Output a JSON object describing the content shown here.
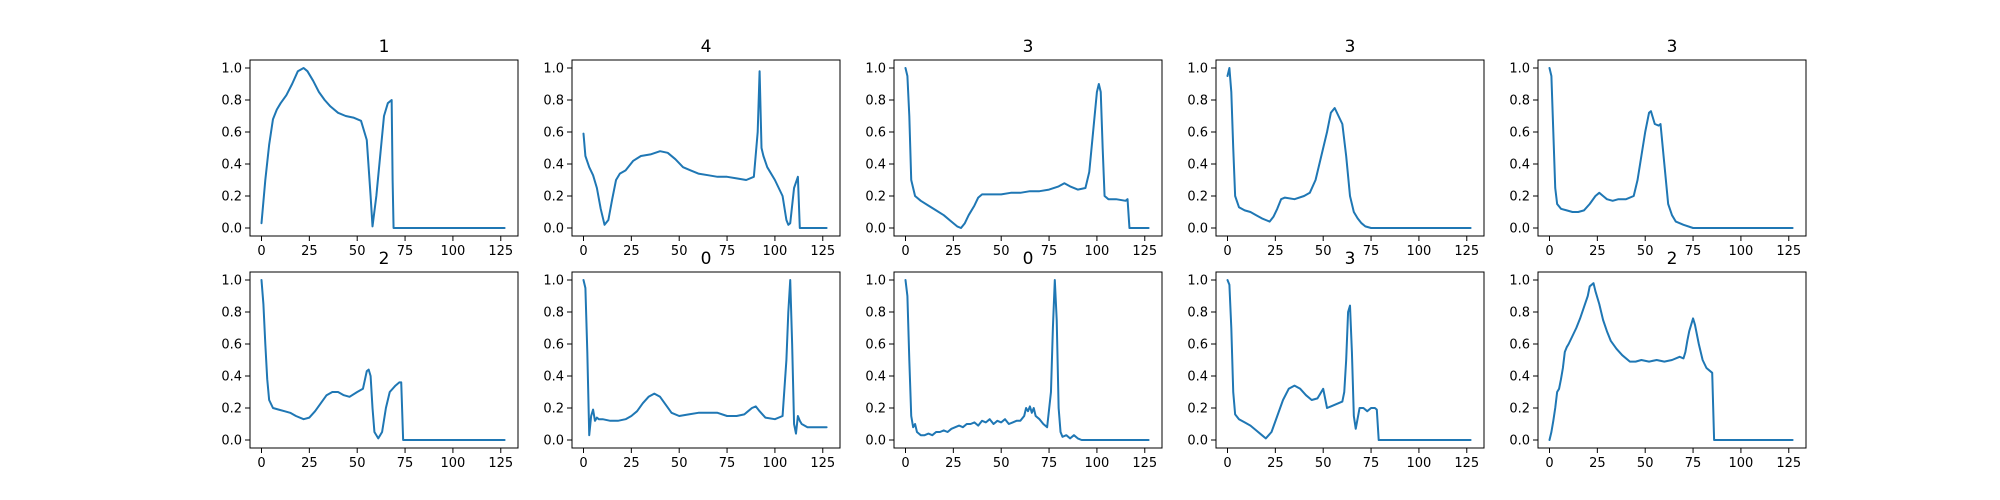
{
  "chart_data": [
    {
      "type": "line",
      "title": "1",
      "xlim": [
        -6,
        134
      ],
      "ylim": [
        -0.05,
        1.05
      ],
      "xticks": [
        "0",
        "25",
        "50",
        "75",
        "100",
        "125"
      ],
      "yticks": [
        "0.0",
        "0.2",
        "0.4",
        "0.6",
        "0.8",
        "1.0"
      ],
      "series": [
        {
          "color": "#1f77b4",
          "x": [
            0,
            2,
            4,
            6,
            8,
            10,
            13,
            16,
            19,
            22,
            24,
            27,
            30,
            33,
            36,
            40,
            44,
            48,
            52,
            55,
            57,
            58,
            60,
            62,
            64,
            66,
            68,
            68.5,
            69,
            80,
            100,
            127
          ],
          "y": [
            0.03,
            0.3,
            0.52,
            0.68,
            0.74,
            0.78,
            0.83,
            0.9,
            0.98,
            1.0,
            0.98,
            0.92,
            0.85,
            0.8,
            0.76,
            0.72,
            0.7,
            0.69,
            0.67,
            0.55,
            0.2,
            0.01,
            0.2,
            0.45,
            0.7,
            0.78,
            0.8,
            0.3,
            0.0,
            0.0,
            0.0,
            0.0
          ]
        }
      ]
    },
    {
      "type": "line",
      "title": "4",
      "xlim": [
        -6,
        134
      ],
      "ylim": [
        -0.05,
        1.05
      ],
      "xticks": [
        "0",
        "25",
        "50",
        "75",
        "100",
        "125"
      ],
      "yticks": [
        "0.0",
        "0.2",
        "0.4",
        "0.6",
        "0.8",
        "1.0"
      ],
      "series": [
        {
          "color": "#1f77b4",
          "x": [
            0,
            1,
            3,
            5,
            7,
            9,
            11,
            13,
            15,
            17,
            19,
            22,
            26,
            30,
            35,
            40,
            44,
            48,
            52,
            56,
            60,
            65,
            70,
            75,
            80,
            85,
            89,
            91,
            92,
            93,
            94,
            96,
            100,
            104,
            106,
            107,
            108,
            110,
            112,
            113,
            115,
            120,
            127
          ],
          "y": [
            0.59,
            0.45,
            0.38,
            0.33,
            0.25,
            0.12,
            0.02,
            0.05,
            0.18,
            0.3,
            0.34,
            0.36,
            0.42,
            0.45,
            0.46,
            0.48,
            0.47,
            0.43,
            0.38,
            0.36,
            0.34,
            0.33,
            0.32,
            0.32,
            0.31,
            0.3,
            0.32,
            0.6,
            0.98,
            0.5,
            0.45,
            0.38,
            0.3,
            0.2,
            0.05,
            0.02,
            0.03,
            0.25,
            0.32,
            0.0,
            0.0,
            0.0,
            0.0
          ]
        }
      ]
    },
    {
      "type": "line",
      "title": "3",
      "xlim": [
        -6,
        134
      ],
      "ylim": [
        -0.05,
        1.05
      ],
      "xticks": [
        "0",
        "25",
        "50",
        "75",
        "100",
        "125"
      ],
      "yticks": [
        "0.0",
        "0.2",
        "0.4",
        "0.6",
        "0.8",
        "1.0"
      ],
      "series": [
        {
          "color": "#1f77b4",
          "x": [
            0,
            1,
            2,
            3,
            5,
            8,
            12,
            16,
            20,
            24,
            27,
            29,
            31,
            33,
            36,
            38,
            40,
            44,
            50,
            55,
            60,
            65,
            70,
            75,
            80,
            83,
            86,
            90,
            94,
            96,
            98,
            100,
            101,
            102,
            103,
            104,
            106,
            110,
            115,
            116,
            117,
            120,
            127
          ],
          "y": [
            1.0,
            0.95,
            0.7,
            0.3,
            0.2,
            0.17,
            0.14,
            0.11,
            0.08,
            0.04,
            0.01,
            0.0,
            0.03,
            0.08,
            0.14,
            0.19,
            0.21,
            0.21,
            0.21,
            0.22,
            0.22,
            0.23,
            0.23,
            0.24,
            0.26,
            0.28,
            0.26,
            0.24,
            0.25,
            0.35,
            0.6,
            0.85,
            0.9,
            0.85,
            0.5,
            0.2,
            0.18,
            0.18,
            0.17,
            0.18,
            0.0,
            0.0,
            0.0
          ]
        }
      ]
    },
    {
      "type": "line",
      "title": "3",
      "xlim": [
        -6,
        134
      ],
      "ylim": [
        -0.05,
        1.05
      ],
      "xticks": [
        "0",
        "25",
        "50",
        "75",
        "100",
        "125"
      ],
      "yticks": [
        "0.0",
        "0.2",
        "0.4",
        "0.6",
        "0.8",
        "1.0"
      ],
      "series": [
        {
          "color": "#1f77b4",
          "x": [
            0,
            1,
            2,
            3,
            4,
            6,
            9,
            12,
            15,
            18,
            20,
            22,
            24,
            26,
            28,
            30,
            35,
            40,
            43,
            46,
            49,
            52,
            54,
            56,
            58,
            60,
            62,
            64,
            66,
            68,
            70,
            72,
            75,
            80,
            100,
            127
          ],
          "y": [
            0.95,
            1.0,
            0.85,
            0.5,
            0.2,
            0.13,
            0.11,
            0.1,
            0.08,
            0.06,
            0.05,
            0.04,
            0.07,
            0.12,
            0.18,
            0.19,
            0.18,
            0.2,
            0.22,
            0.3,
            0.45,
            0.6,
            0.72,
            0.75,
            0.7,
            0.65,
            0.45,
            0.2,
            0.1,
            0.06,
            0.03,
            0.01,
            0.0,
            0.0,
            0.0,
            0.0
          ]
        }
      ]
    },
    {
      "type": "line",
      "title": "3",
      "xlim": [
        -6,
        134
      ],
      "ylim": [
        -0.05,
        1.05
      ],
      "xticks": [
        "0",
        "25",
        "50",
        "75",
        "100",
        "125"
      ],
      "yticks": [
        "0.0",
        "0.2",
        "0.4",
        "0.6",
        "0.8",
        "1.0"
      ],
      "series": [
        {
          "color": "#1f77b4",
          "x": [
            0,
            1,
            2,
            3,
            4,
            6,
            9,
            12,
            15,
            18,
            21,
            24,
            26,
            28,
            30,
            33,
            36,
            40,
            44,
            46,
            48,
            50,
            52,
            53,
            55,
            57,
            58,
            60,
            62,
            64,
            66,
            70,
            75,
            80,
            100,
            127
          ],
          "y": [
            1.0,
            0.95,
            0.6,
            0.25,
            0.15,
            0.12,
            0.11,
            0.1,
            0.1,
            0.11,
            0.15,
            0.2,
            0.22,
            0.2,
            0.18,
            0.17,
            0.18,
            0.18,
            0.2,
            0.3,
            0.45,
            0.6,
            0.72,
            0.73,
            0.65,
            0.64,
            0.65,
            0.4,
            0.15,
            0.08,
            0.04,
            0.02,
            0.0,
            0.0,
            0.0,
            0.0
          ]
        }
      ]
    },
    {
      "type": "line",
      "title": "2",
      "xlim": [
        -6,
        134
      ],
      "ylim": [
        -0.05,
        1.05
      ],
      "xticks": [
        "0",
        "25",
        "50",
        "75",
        "100",
        "125"
      ],
      "yticks": [
        "0.0",
        "0.2",
        "0.4",
        "0.6",
        "0.8",
        "1.0"
      ],
      "series": [
        {
          "color": "#1f77b4",
          "x": [
            0,
            1,
            2,
            3,
            4,
            6,
            9,
            12,
            15,
            18,
            22,
            25,
            28,
            31,
            34,
            37,
            40,
            43,
            46,
            50,
            53,
            55,
            56,
            57,
            58,
            59,
            61,
            63,
            65,
            67,
            70,
            72,
            73,
            74,
            75,
            80,
            100,
            127
          ],
          "y": [
            1.0,
            0.85,
            0.6,
            0.38,
            0.25,
            0.2,
            0.19,
            0.18,
            0.17,
            0.15,
            0.13,
            0.14,
            0.18,
            0.23,
            0.28,
            0.3,
            0.3,
            0.28,
            0.27,
            0.3,
            0.32,
            0.43,
            0.44,
            0.4,
            0.2,
            0.05,
            0.01,
            0.05,
            0.2,
            0.3,
            0.34,
            0.36,
            0.36,
            0.0,
            0.0,
            0.0,
            0.0,
            0.0
          ]
        }
      ]
    },
    {
      "type": "line",
      "title": "0",
      "xlim": [
        -6,
        134
      ],
      "ylim": [
        -0.05,
        1.05
      ],
      "xticks": [
        "0",
        "25",
        "50",
        "75",
        "100",
        "125"
      ],
      "yticks": [
        "0.0",
        "0.2",
        "0.4",
        "0.6",
        "0.8",
        "1.0"
      ],
      "series": [
        {
          "color": "#1f77b4",
          "x": [
            0,
            1,
            2,
            3,
            4,
            5,
            6,
            7,
            8,
            10,
            14,
            18,
            22,
            25,
            28,
            31,
            34,
            37,
            40,
            43,
            46,
            50,
            55,
            60,
            65,
            70,
            75,
            80,
            84,
            86,
            88,
            90,
            92,
            95,
            100,
            104,
            106,
            107,
            108,
            109,
            110,
            111,
            112,
            113,
            114,
            117,
            120,
            127
          ],
          "y": [
            1.0,
            0.95,
            0.55,
            0.03,
            0.15,
            0.19,
            0.12,
            0.14,
            0.13,
            0.13,
            0.12,
            0.12,
            0.13,
            0.15,
            0.18,
            0.23,
            0.27,
            0.29,
            0.27,
            0.22,
            0.17,
            0.15,
            0.16,
            0.17,
            0.17,
            0.17,
            0.15,
            0.15,
            0.16,
            0.18,
            0.2,
            0.21,
            0.18,
            0.14,
            0.13,
            0.15,
            0.5,
            0.8,
            1.0,
            0.6,
            0.1,
            0.04,
            0.15,
            0.12,
            0.1,
            0.08,
            0.08,
            0.08
          ]
        }
      ]
    },
    {
      "type": "line",
      "title": "0",
      "xlim": [
        -6,
        134
      ],
      "ylim": [
        -0.05,
        1.05
      ],
      "xticks": [
        "0",
        "25",
        "50",
        "75",
        "100",
        "125"
      ],
      "yticks": [
        "0.0",
        "0.2",
        "0.4",
        "0.6",
        "0.8",
        "1.0"
      ],
      "series": [
        {
          "color": "#1f77b4",
          "x": [
            0,
            1,
            2,
            3,
            4,
            5,
            6,
            7,
            8,
            10,
            12,
            14,
            16,
            18,
            20,
            22,
            24,
            26,
            28,
            30,
            32,
            34,
            36,
            38,
            40,
            42,
            44,
            46,
            48,
            50,
            52,
            54,
            56,
            58,
            60,
            62,
            63,
            64,
            65,
            66,
            67,
            68,
            70,
            72,
            74,
            76,
            77,
            78,
            79,
            80,
            81,
            82,
            84,
            86,
            88,
            90,
            92,
            94,
            96,
            100,
            127
          ],
          "y": [
            1.0,
            0.9,
            0.5,
            0.15,
            0.08,
            0.1,
            0.05,
            0.04,
            0.03,
            0.03,
            0.04,
            0.03,
            0.05,
            0.05,
            0.06,
            0.05,
            0.07,
            0.08,
            0.09,
            0.08,
            0.1,
            0.1,
            0.11,
            0.09,
            0.12,
            0.11,
            0.13,
            0.1,
            0.12,
            0.11,
            0.13,
            0.1,
            0.11,
            0.12,
            0.12,
            0.15,
            0.2,
            0.18,
            0.21,
            0.17,
            0.2,
            0.15,
            0.13,
            0.1,
            0.08,
            0.3,
            0.7,
            1.0,
            0.75,
            0.2,
            0.05,
            0.02,
            0.03,
            0.01,
            0.03,
            0.01,
            0.0,
            0.0,
            0.0,
            0.0,
            0.0
          ]
        }
      ]
    },
    {
      "type": "line",
      "title": "3",
      "xlim": [
        -6,
        134
      ],
      "ylim": [
        -0.05,
        1.05
      ],
      "xticks": [
        "0",
        "25",
        "50",
        "75",
        "100",
        "125"
      ],
      "yticks": [
        "0.0",
        "0.2",
        "0.4",
        "0.6",
        "0.8",
        "1.0"
      ],
      "series": [
        {
          "color": "#1f77b4",
          "x": [
            0,
            1,
            2,
            3,
            4,
            6,
            9,
            12,
            15,
            18,
            20,
            23,
            26,
            29,
            32,
            35,
            38,
            41,
            44,
            47,
            50,
            52,
            54,
            56,
            58,
            60,
            61,
            62,
            63,
            64,
            65,
            66,
            67,
            69,
            71,
            73,
            75,
            77,
            78,
            79,
            80,
            100,
            127
          ],
          "y": [
            1.0,
            0.97,
            0.7,
            0.3,
            0.16,
            0.13,
            0.11,
            0.09,
            0.06,
            0.03,
            0.01,
            0.05,
            0.15,
            0.25,
            0.32,
            0.34,
            0.32,
            0.28,
            0.25,
            0.26,
            0.32,
            0.2,
            0.21,
            0.22,
            0.23,
            0.24,
            0.3,
            0.5,
            0.8,
            0.84,
            0.55,
            0.15,
            0.07,
            0.2,
            0.2,
            0.18,
            0.2,
            0.2,
            0.19,
            0.0,
            0.0,
            0.0,
            0.0
          ]
        }
      ]
    },
    {
      "type": "line",
      "title": "2",
      "xlim": [
        -6,
        134
      ],
      "ylim": [
        -0.05,
        1.05
      ],
      "xticks": [
        "0",
        "25",
        "50",
        "75",
        "100",
        "125"
      ],
      "yticks": [
        "0.0",
        "0.2",
        "0.4",
        "0.6",
        "0.8",
        "1.0"
      ],
      "series": [
        {
          "color": "#1f77b4",
          "x": [
            0,
            1,
            2,
            3,
            4,
            5,
            6,
            7,
            8,
            9,
            10,
            12,
            14,
            16,
            18,
            20,
            21,
            22,
            23,
            24,
            26,
            28,
            30,
            32,
            35,
            38,
            42,
            45,
            48,
            52,
            56,
            60,
            64,
            68,
            70,
            71,
            72,
            73,
            74,
            75,
            76,
            78,
            80,
            82,
            84,
            85,
            86,
            90,
            100,
            127
          ],
          "y": [
            0.0,
            0.05,
            0.12,
            0.2,
            0.3,
            0.32,
            0.38,
            0.45,
            0.55,
            0.58,
            0.6,
            0.65,
            0.7,
            0.76,
            0.83,
            0.9,
            0.96,
            0.97,
            0.98,
            0.93,
            0.85,
            0.75,
            0.68,
            0.62,
            0.57,
            0.53,
            0.49,
            0.49,
            0.5,
            0.49,
            0.5,
            0.49,
            0.5,
            0.52,
            0.51,
            0.55,
            0.62,
            0.68,
            0.72,
            0.76,
            0.72,
            0.6,
            0.5,
            0.45,
            0.43,
            0.42,
            0.0,
            0.0,
            0.0,
            0.0
          ]
        }
      ]
    }
  ]
}
